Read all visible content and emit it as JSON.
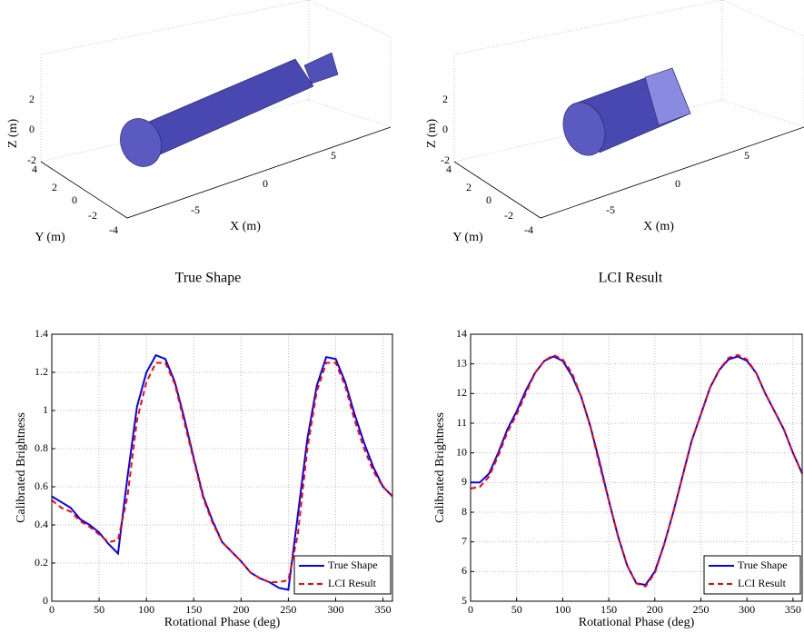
{
  "chart_data": [
    {
      "type": "mesh3d",
      "caption": "True Shape",
      "xlabel": "X (m)",
      "ylabel": "Y (m)",
      "zlabel": "Z (m)",
      "xticks": [
        -5,
        0,
        5
      ],
      "yticks": [
        4,
        2,
        0,
        -2,
        -4
      ],
      "zticks": [
        2,
        0,
        -2
      ]
    },
    {
      "type": "mesh3d",
      "caption": "LCI Result",
      "xlabel": "X (m)",
      "ylabel": "Y (m)",
      "zlabel": "Z (m)",
      "xticks": [
        -5,
        0,
        5
      ],
      "yticks": [
        4,
        2,
        0,
        -2,
        -4
      ],
      "zticks": [
        2,
        0,
        -2
      ]
    },
    {
      "type": "line",
      "xlabel": "Rotational Phase (deg)",
      "ylabel": "Calibrated Brightness",
      "x": [
        0,
        10,
        20,
        30,
        40,
        50,
        60,
        70,
        80,
        90,
        100,
        110,
        120,
        130,
        140,
        150,
        160,
        170,
        180,
        190,
        200,
        210,
        220,
        230,
        240,
        250,
        260,
        270,
        280,
        290,
        300,
        310,
        320,
        330,
        340,
        350,
        360
      ],
      "series": [
        {
          "name": "True Shape",
          "color": "#0000ff",
          "values": [
            0.55,
            0.52,
            0.49,
            0.43,
            0.4,
            0.36,
            0.3,
            0.25,
            0.65,
            1.02,
            1.2,
            1.29,
            1.27,
            1.15,
            0.96,
            0.75,
            0.55,
            0.42,
            0.31,
            0.26,
            0.21,
            0.15,
            0.12,
            0.1,
            0.07,
            0.06,
            0.45,
            0.85,
            1.13,
            1.28,
            1.27,
            1.15,
            0.98,
            0.83,
            0.7,
            0.6,
            0.55
          ]
        },
        {
          "name": "LCI Result",
          "color": "#ff0000",
          "values": [
            0.53,
            0.49,
            0.47,
            0.42,
            0.39,
            0.35,
            0.31,
            0.32,
            0.55,
            0.95,
            1.15,
            1.25,
            1.25,
            1.14,
            0.94,
            0.74,
            0.54,
            0.41,
            0.31,
            0.26,
            0.21,
            0.15,
            0.12,
            0.1,
            0.1,
            0.11,
            0.35,
            0.8,
            1.1,
            1.25,
            1.25,
            1.13,
            0.95,
            0.8,
            0.68,
            0.6,
            0.55
          ]
        }
      ],
      "xlim": [
        0,
        360
      ],
      "ylim": [
        0,
        1.4
      ],
      "xticks": [
        0,
        50,
        100,
        150,
        200,
        250,
        300,
        350
      ],
      "yticks": [
        0,
        0.2,
        0.4,
        0.6,
        0.8,
        1,
        1.2,
        1.4
      ],
      "grid": true,
      "legend": "lower right"
    },
    {
      "type": "line",
      "xlabel": "Rotational Phase (deg)",
      "ylabel": "Calibrated Brightness",
      "x": [
        0,
        10,
        20,
        30,
        40,
        50,
        60,
        70,
        80,
        90,
        100,
        110,
        120,
        130,
        140,
        150,
        160,
        170,
        180,
        190,
        200,
        210,
        220,
        230,
        240,
        250,
        260,
        270,
        280,
        290,
        300,
        310,
        320,
        330,
        340,
        350,
        360
      ],
      "series": [
        {
          "name": "True Shape",
          "color": "#0000ff",
          "values": [
            9.0,
            9.0,
            9.3,
            10.0,
            10.8,
            11.4,
            12.1,
            12.7,
            13.1,
            13.25,
            13.1,
            12.6,
            11.9,
            10.9,
            9.7,
            8.4,
            7.2,
            6.2,
            5.6,
            5.55,
            6.0,
            6.9,
            8.0,
            9.2,
            10.4,
            11.3,
            12.2,
            12.8,
            13.15,
            13.25,
            13.1,
            12.7,
            12.0,
            11.4,
            10.8,
            10.0,
            9.3
          ]
        },
        {
          "name": "LCI Result",
          "color": "#ff0000",
          "values": [
            8.8,
            8.85,
            9.2,
            9.9,
            10.7,
            11.3,
            12.0,
            12.7,
            13.1,
            13.3,
            13.15,
            12.7,
            11.9,
            10.9,
            9.6,
            8.4,
            7.2,
            6.2,
            5.6,
            5.5,
            5.95,
            6.9,
            8.0,
            9.2,
            10.4,
            11.3,
            12.2,
            12.8,
            13.2,
            13.3,
            13.15,
            12.7,
            12.0,
            11.4,
            10.8,
            10.0,
            9.3
          ]
        }
      ],
      "xlim": [
        0,
        360
      ],
      "ylim": [
        5,
        14
      ],
      "xticks": [
        0,
        50,
        100,
        150,
        200,
        250,
        300,
        350
      ],
      "yticks": [
        5,
        6,
        7,
        8,
        9,
        10,
        11,
        12,
        13,
        14
      ],
      "grid": true,
      "legend": "lower right"
    }
  ]
}
